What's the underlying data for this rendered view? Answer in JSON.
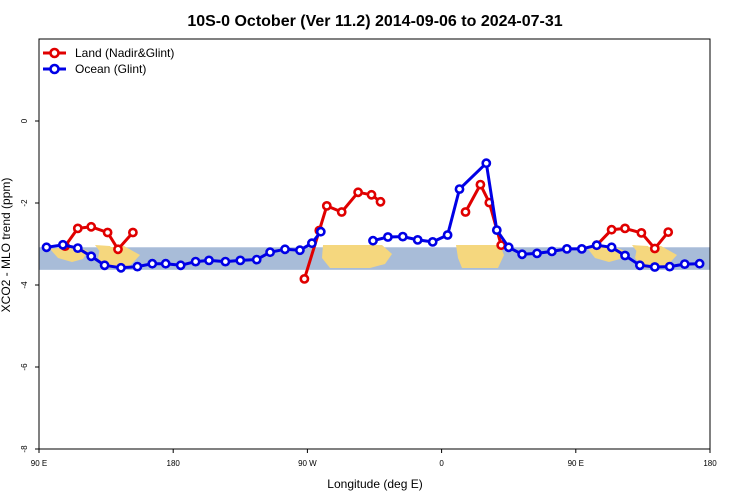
{
  "chart_data": {
    "type": "line",
    "title": "10S-0 October (Ver 11.2)   2014-09-06 to 2024-07-31",
    "xlabel": "Longitude (deg E)",
    "ylabel": "XCO2 - MLO trend (ppm)",
    "xlim": [
      90,
      540
    ],
    "ylim": [
      -8,
      2
    ],
    "x_ticks": [
      {
        "value": 90,
        "label": "90 E"
      },
      {
        "value": 180,
        "label": "180"
      },
      {
        "value": 270,
        "label": "90 W"
      },
      {
        "value": 360,
        "label": "0"
      },
      {
        "value": 450,
        "label": "90 E"
      },
      {
        "value": 540,
        "label": "180"
      }
    ],
    "y_ticks": [
      {
        "value": 0,
        "label": "0"
      },
      {
        "value": -2,
        "label": "-2"
      },
      {
        "value": -4,
        "label": "-4"
      },
      {
        "value": -6,
        "label": "-6"
      },
      {
        "value": -8,
        "label": "-8"
      }
    ],
    "legend_position": "top-left",
    "map_strip": {
      "y_top": -3.08,
      "y_bottom": -3.63,
      "ocean_color": "#a8bcd8",
      "land_color": "#f5d77e"
    },
    "series": [
      {
        "name": "Land (Nadir&Glint)",
        "color": "#e00000",
        "segments": [
          [
            [
              107.5,
              -3.05
            ],
            [
              116,
              -2.62
            ],
            [
              125,
              -2.58
            ],
            [
              136,
              -2.72
            ],
            [
              143,
              -3.13
            ],
            [
              153,
              -2.72
            ]
          ],
          [
            [
              268,
              -3.85
            ],
            [
              278,
              -2.67
            ],
            [
              283,
              -2.07
            ],
            [
              293,
              -2.22
            ],
            [
              304,
              -1.74
            ],
            [
              313,
              -1.8
            ],
            [
              319,
              -1.97
            ]
          ],
          [
            [
              376,
              -2.22
            ],
            [
              386,
              -1.55
            ],
            [
              392,
              -1.99
            ],
            [
              400,
              -3.03
            ]
          ],
          [
            [
              464,
              -3.03
            ],
            [
              474,
              -2.65
            ],
            [
              483,
              -2.62
            ],
            [
              494,
              -2.73
            ],
            [
              503,
              -3.11
            ],
            [
              512,
              -2.71
            ]
          ]
        ]
      },
      {
        "name": "Ocean (Glint)",
        "color": "#0000e6",
        "segments": [
          [
            [
              95,
              -3.08
            ],
            [
              106,
              -3.02
            ],
            [
              116,
              -3.1
            ],
            [
              125,
              -3.3
            ],
            [
              134,
              -3.52
            ],
            [
              145,
              -3.58
            ],
            [
              156,
              -3.55
            ],
            [
              166,
              -3.48
            ],
            [
              175,
              -3.48
            ],
            [
              185,
              -3.52
            ],
            [
              195,
              -3.43
            ],
            [
              204,
              -3.4
            ],
            [
              215,
              -3.43
            ],
            [
              225,
              -3.4
            ],
            [
              236,
              -3.38
            ],
            [
              245,
              -3.2
            ],
            [
              255,
              -3.13
            ],
            [
              265,
              -3.15
            ],
            [
              273,
              -2.98
            ],
            [
              279,
              -2.7
            ]
          ],
          [
            [
              314,
              -2.92
            ],
            [
              324,
              -2.83
            ],
            [
              334,
              -2.82
            ],
            [
              344,
              -2.9
            ],
            [
              354,
              -2.95
            ],
            [
              364,
              -2.78
            ],
            [
              372,
              -1.66
            ],
            [
              390,
              -1.03
            ],
            [
              397,
              -2.66
            ],
            [
              405,
              -3.08
            ],
            [
              414,
              -3.25
            ],
            [
              424,
              -3.23
            ],
            [
              434,
              -3.18
            ],
            [
              444,
              -3.12
            ],
            [
              454,
              -3.12
            ],
            [
              464,
              -3.03
            ],
            [
              474,
              -3.08
            ],
            [
              483,
              -3.28
            ],
            [
              493,
              -3.52
            ],
            [
              503,
              -3.56
            ],
            [
              513,
              -3.55
            ],
            [
              523,
              -3.49
            ],
            [
              533,
              -3.48
            ]
          ]
        ]
      }
    ]
  }
}
